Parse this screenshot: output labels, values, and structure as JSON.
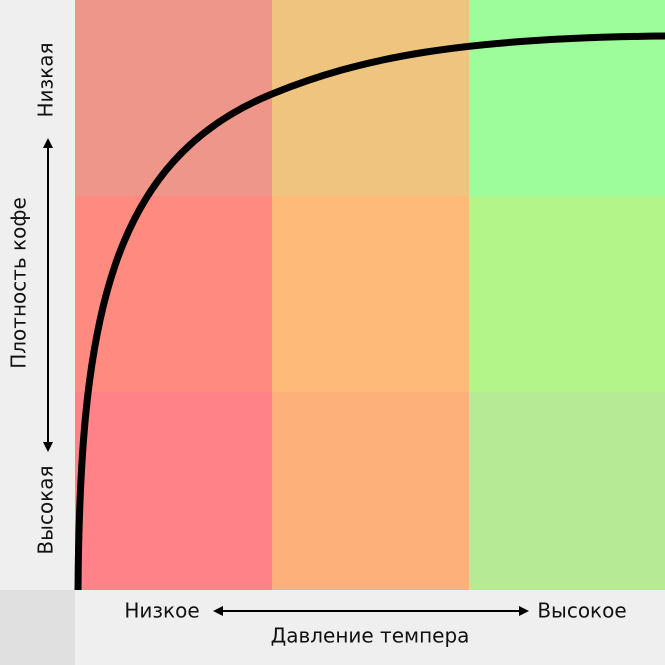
{
  "y_axis": {
    "label": "Плотность кофе",
    "top": "Низкая",
    "bottom": "Высокая"
  },
  "x_axis": {
    "label": "Давление темпера",
    "left": "Низкое",
    "right": "Высокое"
  }
}
